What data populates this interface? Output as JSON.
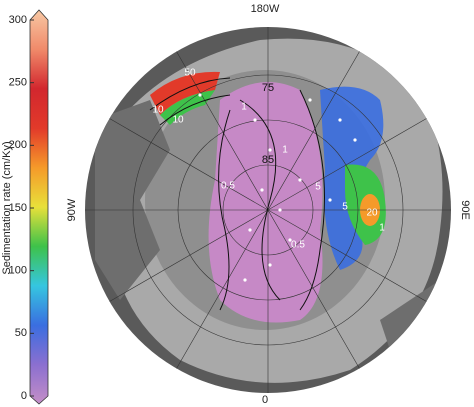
{
  "colorbar": {
    "label": "Sedimentation rate (cm/Ky)",
    "lim": [
      0,
      300
    ],
    "ticks": [
      0,
      50,
      100,
      150,
      200,
      250,
      300
    ],
    "colors": [
      "#c58fc7",
      "#8b6fd0",
      "#3a6ee0",
      "#35c6e0",
      "#3ec24a",
      "#e8e03a",
      "#f59a2a",
      "#e23a2a",
      "#d2272e",
      "#f08a6a",
      "#f7c8a4"
    ]
  },
  "map": {
    "meridians": [
      "180W",
      "90E",
      "0",
      "90W"
    ],
    "latitudes": [
      "75",
      "85"
    ],
    "contours": [
      "0.5",
      "1",
      "5",
      "10",
      "20",
      "50",
      "5",
      "10",
      "1",
      "0.5",
      "1"
    ]
  }
}
